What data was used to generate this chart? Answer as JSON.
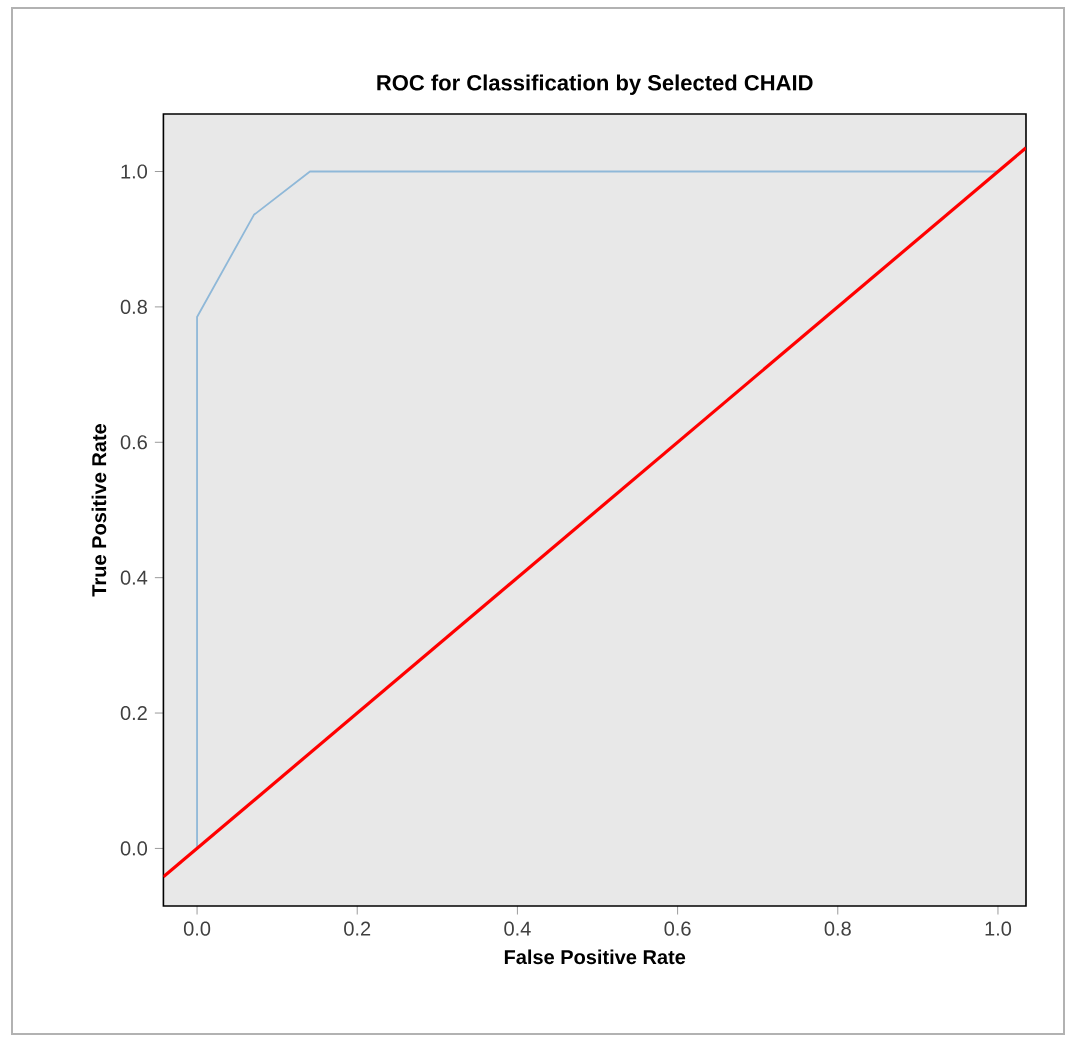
{
  "chart_data": {
    "type": "line",
    "title": "ROC for Classification by Selected CHAID",
    "xlabel": "False Positive Rate",
    "ylabel": "True Positive Rate",
    "xlim": [
      -0.042,
      1.035
    ],
    "ylim": [
      -0.085,
      1.085
    ],
    "xticks": [
      {
        "value": 0,
        "label": "0.0"
      },
      0.2,
      0.4,
      0.6,
      0.8,
      {
        "value": 1,
        "label": "1.0"
      }
    ],
    "yticks": [
      {
        "value": 0,
        "label": "0.0"
      },
      0.2,
      0.4,
      0.6,
      0.8,
      {
        "value": 1,
        "label": "1.0"
      }
    ],
    "series": [
      {
        "color": "#8fb8d8",
        "x": [
          0,
          0,
          0.071,
          0.141,
          1
        ],
        "values": [
          0,
          0.785,
          0.936,
          1,
          1
        ]
      },
      {
        "color": "#ff0000",
        "x": [
          -0.042,
          1.035
        ],
        "values": [
          -0.042,
          1.035
        ]
      }
    ],
    "marker": "none",
    "line_style": "solid",
    "grid": false,
    "legend": false
  }
}
